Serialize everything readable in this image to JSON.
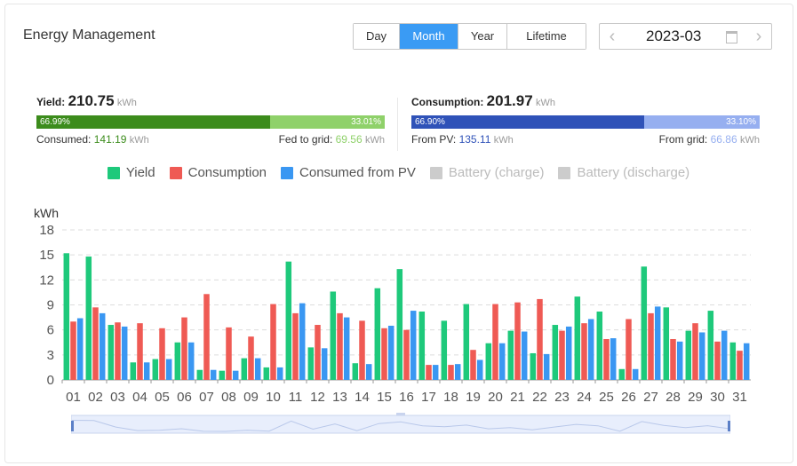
{
  "header": {
    "title": "Energy Management",
    "tabs": [
      {
        "label": "Day",
        "active": false
      },
      {
        "label": "Month",
        "active": true
      },
      {
        "label": "Year",
        "active": false
      },
      {
        "label": "Lifetime",
        "active": false
      }
    ],
    "date": "2023-03"
  },
  "yield_summary": {
    "label": "Yield:",
    "value": "210.75",
    "unit": "kWh",
    "bar": {
      "consumed_pct": "66.99%",
      "grid_pct": "33.01%",
      "consumed_fraction": 0.6699
    },
    "consumed_label": "Consumed:",
    "consumed_value": "141.19",
    "grid_label": "Fed to grid:",
    "grid_value": "69.56",
    "colors": {
      "primary": "#3c8c1c",
      "secondary": "#8fd16a"
    }
  },
  "consumption_summary": {
    "label": "Consumption:",
    "value": "201.97",
    "unit": "kWh",
    "bar": {
      "pv_pct": "66.90%",
      "grid_pct": "33.10%",
      "pv_fraction": 0.669
    },
    "pv_label": "From PV:",
    "pv_value": "135.11",
    "grid_label": "From grid:",
    "grid_value": "66.86",
    "colors": {
      "primary": "#2f52b8",
      "secondary": "#96aff0"
    }
  },
  "legend": [
    {
      "label": "Yield",
      "color": "#1ec97b",
      "enabled": true
    },
    {
      "label": "Consumption",
      "color": "#ef5a54",
      "enabled": true
    },
    {
      "label": "Consumed from PV",
      "color": "#3a97f2",
      "enabled": true
    },
    {
      "label": "Battery (charge)",
      "color": "#cccccc",
      "enabled": false
    },
    {
      "label": "Battery (discharge)",
      "color": "#cccccc",
      "enabled": false
    }
  ],
  "chart_data": {
    "type": "bar",
    "ylabel": "kWh",
    "ylim": [
      0,
      18
    ],
    "yticks": [
      0,
      3,
      6,
      9,
      12,
      15,
      18
    ],
    "grid": true,
    "categories": [
      "01",
      "02",
      "03",
      "04",
      "05",
      "06",
      "07",
      "08",
      "09",
      "10",
      "11",
      "12",
      "13",
      "14",
      "15",
      "16",
      "17",
      "18",
      "19",
      "20",
      "21",
      "22",
      "23",
      "24",
      "25",
      "26",
      "27",
      "28",
      "29",
      "30",
      "31"
    ],
    "series": [
      {
        "name": "Yield",
        "color": "#1ec97b",
        "values": [
          15.2,
          14.8,
          6.6,
          2.1,
          2.5,
          4.5,
          1.2,
          1.1,
          2.6,
          1.5,
          14.2,
          3.9,
          10.6,
          2.0,
          11.0,
          13.3,
          8.2,
          7.1,
          9.1,
          4.4,
          5.9,
          3.2,
          6.6,
          10.0,
          8.2,
          1.3,
          13.6,
          8.7,
          5.9,
          8.3,
          4.5
        ]
      },
      {
        "name": "Consumption",
        "color": "#ef5a54",
        "values": [
          7.0,
          8.7,
          6.9,
          6.8,
          6.2,
          7.5,
          10.3,
          6.3,
          5.2,
          9.1,
          8.0,
          6.6,
          8.0,
          7.1,
          6.2,
          6.0,
          1.8,
          1.8,
          3.6,
          9.1,
          9.3,
          9.7,
          5.9,
          6.8,
          4.9,
          7.3,
          8.0,
          4.9,
          6.8,
          4.6,
          3.5
        ]
      },
      {
        "name": "Consumed from PV",
        "color": "#3a97f2",
        "values": [
          7.4,
          8.0,
          6.4,
          2.1,
          2.5,
          4.5,
          1.2,
          1.1,
          2.6,
          1.5,
          9.2,
          3.8,
          7.5,
          1.9,
          6.5,
          8.3,
          1.8,
          1.9,
          2.4,
          4.4,
          5.8,
          3.1,
          6.4,
          7.3,
          5.0,
          1.3,
          8.8,
          4.6,
          5.7,
          5.9,
          4.4
        ]
      }
    ]
  }
}
